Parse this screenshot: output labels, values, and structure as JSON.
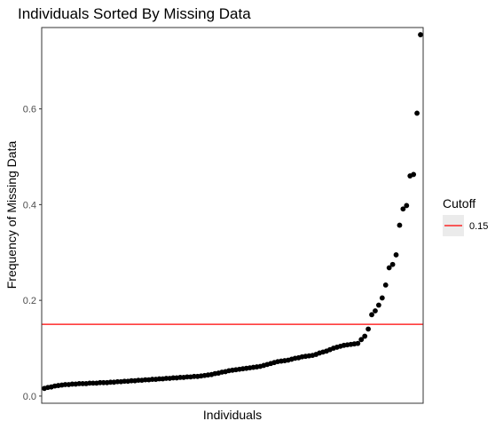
{
  "chart_data": {
    "type": "scatter",
    "title": "Individuals Sorted By Missing Data",
    "xlabel": "Individuals",
    "ylabel": "Frequency of Missing Data",
    "ylim": [
      -0.015,
      0.77
    ],
    "yticks": [
      0.0,
      0.2,
      0.4,
      0.6
    ],
    "ytick_labels": [
      "0.0",
      "0.2",
      "0.4",
      "0.6"
    ],
    "x_ticks_shown": false,
    "grid": false,
    "legend": {
      "title": "Cutoff",
      "placement": "right",
      "entries": [
        {
          "label": "0.15",
          "color": "#ff0000"
        }
      ]
    },
    "cutoff": 0.15,
    "cutoff_color": "#ff0000",
    "point_color": "#000000",
    "panel_border_color": "#333333",
    "values": [
      0.016,
      0.018,
      0.019,
      0.021,
      0.022,
      0.023,
      0.024,
      0.024,
      0.025,
      0.025,
      0.026,
      0.026,
      0.026,
      0.027,
      0.027,
      0.027,
      0.028,
      0.028,
      0.028,
      0.029,
      0.029,
      0.03,
      0.03,
      0.031,
      0.031,
      0.032,
      0.032,
      0.033,
      0.033,
      0.034,
      0.034,
      0.035,
      0.035,
      0.036,
      0.036,
      0.037,
      0.037,
      0.038,
      0.038,
      0.039,
      0.039,
      0.04,
      0.04,
      0.041,
      0.041,
      0.042,
      0.043,
      0.044,
      0.045,
      0.047,
      0.048,
      0.05,
      0.051,
      0.053,
      0.054,
      0.055,
      0.056,
      0.057,
      0.058,
      0.059,
      0.06,
      0.061,
      0.062,
      0.064,
      0.066,
      0.068,
      0.07,
      0.072,
      0.073,
      0.074,
      0.075,
      0.077,
      0.079,
      0.08,
      0.082,
      0.083,
      0.084,
      0.085,
      0.087,
      0.09,
      0.092,
      0.094,
      0.097,
      0.1,
      0.102,
      0.104,
      0.106,
      0.107,
      0.108,
      0.109,
      0.11,
      0.118,
      0.125,
      0.14,
      0.17,
      0.178,
      0.19,
      0.205,
      0.232,
      0.268,
      0.275,
      0.295,
      0.357,
      0.391,
      0.398,
      0.46,
      0.463,
      0.591,
      0.755
    ]
  }
}
